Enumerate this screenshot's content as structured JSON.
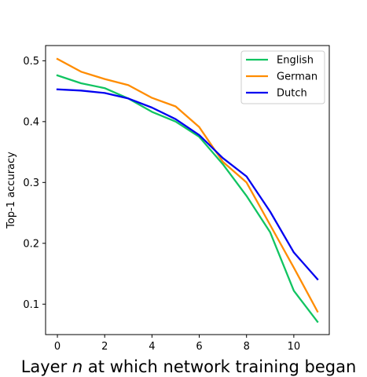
{
  "chart_data": {
    "type": "line",
    "title": "",
    "xlabel_prefix": "Layer ",
    "xlabel_var": "n",
    "xlabel_suffix": " at which network training began",
    "ylabel": "Top-1 accuracy",
    "xlim": [
      -0.5,
      11.5
    ],
    "ylim": [
      0.05,
      0.525
    ],
    "xticks": [
      0,
      2,
      4,
      6,
      8,
      10
    ],
    "yticks": [
      0.1,
      0.2,
      0.3,
      0.4,
      0.5
    ],
    "ytick_labels": [
      "0.1",
      "0.2",
      "0.3",
      "0.4",
      "0.5"
    ],
    "grid": false,
    "legend_position": "top-right",
    "x": [
      0,
      1,
      2,
      3,
      4,
      5,
      6,
      7,
      8,
      9,
      10,
      11
    ],
    "series": [
      {
        "name": "English",
        "color": "#11c461",
        "values": [
          0.476,
          0.463,
          0.455,
          0.438,
          0.416,
          0.4,
          0.375,
          0.33,
          0.278,
          0.218,
          0.122,
          0.071
        ]
      },
      {
        "name": "German",
        "color": "#ff8c00",
        "values": [
          0.503,
          0.482,
          0.47,
          0.46,
          0.439,
          0.425,
          0.391,
          0.334,
          0.3,
          0.23,
          0.16,
          0.088
        ]
      },
      {
        "name": "Dutch",
        "color": "#0000f0",
        "values": [
          0.453,
          0.451,
          0.447,
          0.438,
          0.423,
          0.404,
          0.378,
          0.34,
          0.31,
          0.252,
          0.185,
          0.141
        ]
      }
    ]
  }
}
